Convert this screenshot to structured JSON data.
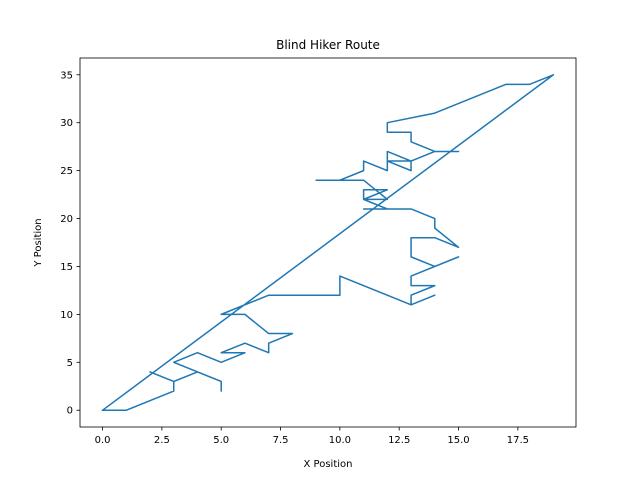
{
  "chart_data": {
    "type": "line",
    "title": "Blind Hiker Route",
    "xlabel": "X Position",
    "ylabel": "Y Position",
    "xlim": [
      -0.95,
      19.95
    ],
    "ylim": [
      -1.75,
      36.75
    ],
    "xticks": [
      0.0,
      2.5,
      5.0,
      7.5,
      10.0,
      12.5,
      15.0,
      17.5
    ],
    "xtick_labels": [
      "0.0",
      "2.5",
      "5.0",
      "7.5",
      "10.0",
      "12.5",
      "15.0",
      "17.5"
    ],
    "yticks": [
      0,
      5,
      10,
      15,
      20,
      25,
      30,
      35
    ],
    "ytick_labels": [
      "0",
      "5",
      "10",
      "15",
      "20",
      "25",
      "30",
      "35"
    ],
    "grid": false,
    "line_color": "#1f77b4",
    "series": [
      {
        "x": [
          0,
          1,
          3,
          3,
          2,
          3,
          4,
          5,
          5,
          5,
          3,
          4,
          5,
          6,
          5,
          6,
          7,
          7,
          8,
          7,
          6,
          5,
          6,
          5,
          7,
          10,
          10,
          12,
          13,
          14,
          13,
          13,
          14,
          13,
          13,
          15,
          14,
          13,
          13,
          14,
          15,
          14,
          14,
          13,
          12,
          11,
          12,
          11,
          11,
          12,
          11,
          12,
          11,
          9,
          10,
          11,
          11,
          12,
          12,
          13,
          13,
          12,
          12,
          13,
          14,
          15,
          14,
          13,
          13,
          12,
          12,
          14,
          17,
          18,
          19,
          0
        ],
        "y": [
          0,
          0,
          2,
          3,
          4,
          3,
          4,
          3,
          2,
          3,
          5,
          6,
          5,
          6,
          6,
          7,
          6,
          7,
          8,
          8,
          10,
          10,
          10,
          10,
          12,
          12,
          14,
          12,
          11,
          12,
          11,
          12,
          13,
          13,
          14,
          16,
          15,
          16,
          18,
          18,
          17,
          19,
          20,
          21,
          21,
          21,
          21,
          22,
          23,
          23,
          22,
          22,
          24,
          24,
          24,
          25,
          26,
          25,
          26,
          25,
          26,
          26,
          27,
          26,
          27,
          27,
          27,
          28,
          29,
          29,
          30,
          31,
          34,
          34,
          35,
          0
        ]
      }
    ]
  }
}
